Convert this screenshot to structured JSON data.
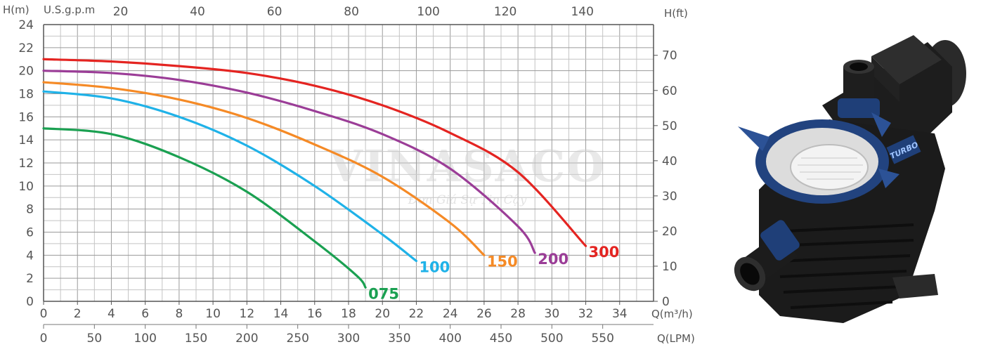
{
  "chart_data": {
    "type": "line",
    "axes": {
      "left_label": "H(m)",
      "right_label": "H(ft)",
      "top_label": "U.S.g.p.m",
      "bottom_label_1": "Q(m³/h)",
      "bottom_label_2": "Q(LPM)",
      "y_ticks": [
        0,
        2,
        4,
        6,
        8,
        10,
        12,
        14,
        16,
        18,
        20,
        22,
        24
      ],
      "y_range": [
        0,
        24
      ],
      "x_ticks": [
        0,
        2,
        4,
        6,
        8,
        10,
        12,
        14,
        16,
        18,
        20,
        22,
        24,
        26,
        28,
        30,
        32,
        34
      ],
      "x_range": [
        0,
        36
      ],
      "top_ticks": [
        20,
        40,
        60,
        80,
        100,
        120,
        140
      ],
      "lpm_ticks": [
        0,
        50,
        100,
        150,
        200,
        250,
        300,
        350,
        400,
        450,
        500,
        550
      ],
      "ft_ticks": [
        0,
        10,
        20,
        30,
        40,
        50,
        60,
        70
      ],
      "grid": true
    },
    "series": [
      {
        "name": "075",
        "color": "#1aa051",
        "x": [
          0,
          4,
          8,
          12,
          16,
          18.5,
          19
        ],
        "y": [
          15,
          14.5,
          12.5,
          9.5,
          5.2,
          2.2,
          1.2
        ]
      },
      {
        "name": "100",
        "color": "#1fb2e8",
        "x": [
          0,
          4,
          8,
          12,
          16,
          20,
          22
        ],
        "y": [
          18.2,
          17.6,
          16,
          13.5,
          10,
          5.8,
          3.5
        ]
      },
      {
        "name": "150",
        "color": "#f58a26",
        "x": [
          0,
          4,
          8,
          12,
          16,
          20,
          24,
          26
        ],
        "y": [
          19,
          18.5,
          17.5,
          15.9,
          13.6,
          10.8,
          6.8,
          4
        ]
      },
      {
        "name": "200",
        "color": "#9b3d97",
        "x": [
          0,
          4,
          8,
          12,
          16,
          20,
          24,
          28,
          29
        ],
        "y": [
          20,
          19.8,
          19.2,
          18.1,
          16.5,
          14.5,
          11.5,
          6.5,
          4.2
        ]
      },
      {
        "name": "300",
        "color": "#e42421",
        "x": [
          0,
          4,
          8,
          12,
          16,
          20,
          24,
          28,
          32
        ],
        "y": [
          21,
          20.8,
          20.4,
          19.8,
          18.7,
          17,
          14.6,
          11.2,
          4.8
        ]
      }
    ]
  },
  "watermark": {
    "brand": "VINASACO",
    "tagline": "Đơn Giá Sự Tin Cậy"
  },
  "product": {
    "logo_text": "TURBO",
    "image": "pool-pump-with-strainer-basket"
  }
}
